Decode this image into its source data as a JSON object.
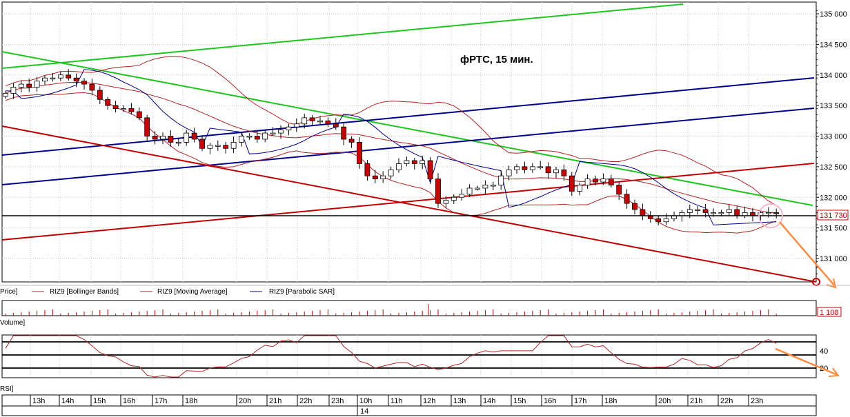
{
  "chart_data": {
    "type": "candlestick",
    "title": "фРТС,  15 мин.",
    "y_range": [
      130750,
      135100
    ],
    "y_ticks": [
      131000,
      131500,
      132000,
      132500,
      133000,
      133500,
      134000,
      134500,
      135000
    ],
    "y_tick_labels": [
      "131 000",
      "131 500",
      "132 000",
      "132 500",
      "133 000",
      "133 500",
      "134 000",
      "134 500",
      "135 000"
    ],
    "last_price_label": "131 730",
    "last_price": 131730,
    "volume_label": "1 108",
    "rsi_ticks": [
      40,
      20
    ],
    "rsi_tick_labels": [
      "40",
      "20"
    ],
    "time_labels": [
      "13h",
      "14h",
      "15h",
      "16h",
      "17h",
      "18h",
      "20h",
      "21h",
      "22h",
      "23h",
      "10h",
      "11h",
      "12h",
      "13h",
      "14h",
      "15h",
      "16h",
      "17h",
      "18h",
      "20h",
      "21h",
      "22h",
      "23h"
    ],
    "date_label": "14",
    "legend": {
      "price": "Price]",
      "bollinger": "RIZ9 [Bollinger Bands]",
      "ma": "RIZ9 [Moving Average]",
      "sar": "RIZ9 [Parabolic SAR]"
    },
    "pane_labels": {
      "volume": "Volume]",
      "rsi": "RSI]"
    },
    "closes": [
      133700,
      133800,
      133850,
      133800,
      133900,
      133950,
      133950,
      134000,
      133950,
      133900,
      133850,
      133750,
      133600,
      133500,
      133450,
      133450,
      133400,
      133300,
      133000,
      132950,
      133000,
      132900,
      132900,
      133050,
      132950,
      132800,
      132850,
      132850,
      132800,
      132900,
      133000,
      133000,
      132950,
      133050,
      133050,
      133100,
      133150,
      133200,
      133300,
      133250,
      133250,
      133200,
      133150,
      132950,
      132900,
      132550,
      132350,
      132300,
      132350,
      132450,
      132550,
      132600,
      132550,
      132600,
      132300,
      131900,
      131950,
      132000,
      132050,
      132150,
      132150,
      132200,
      132200,
      132350,
      132450,
      132500,
      132450,
      132500,
      132500,
      132400,
      132450,
      132350,
      132100,
      132200,
      132300,
      132250,
      132300,
      132200,
      132050,
      131900,
      131800,
      131700,
      131650,
      131600,
      131650,
      131700,
      131750,
      131800,
      131800,
      131750,
      131750,
      131750,
      131800,
      131700,
      131750,
      131700,
      131750,
      131750,
      131730
    ],
    "colors": {
      "up_candle": "#ffffff",
      "down_candle": "#cc0000",
      "bollinger": "#b22222",
      "sar": "#00008b",
      "trend_green": "#1cc61c",
      "trend_blue": "#00008b",
      "trend_red": "#c00000",
      "annotation": "#ff8a3d"
    }
  }
}
